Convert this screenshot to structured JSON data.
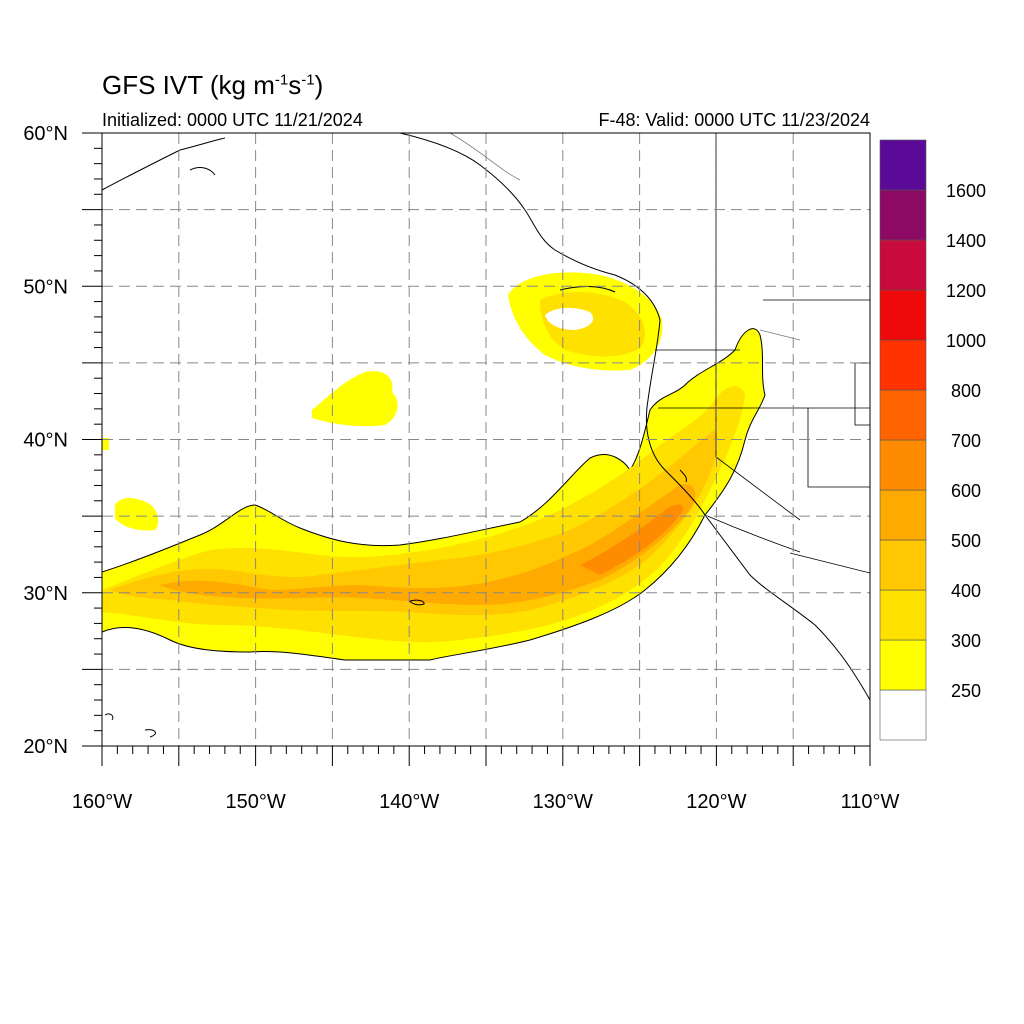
{
  "header": {
    "title_text": "GFS IVT (kg m",
    "title_exp1": "-1",
    "title_mid": "s",
    "title_exp2": "-1",
    "title_end": ")",
    "initialized": "Initialized: 0000 UTC 11/21/2024",
    "valid": "F-48: Valid: 0000 UTC 11/23/2024"
  },
  "map": {
    "lon_range": [
      -160,
      -110
    ],
    "lat_range": [
      20,
      60
    ],
    "x_ticks": [
      {
        "lon": -160,
        "label": "160°W"
      },
      {
        "lon": -150,
        "label": "150°W"
      },
      {
        "lon": -140,
        "label": "140°W"
      },
      {
        "lon": -130,
        "label": "130°W"
      },
      {
        "lon": -120,
        "label": "120°W"
      },
      {
        "lon": -110,
        "label": "110°W"
      }
    ],
    "y_ticks": [
      {
        "lat": 20,
        "label": "20°N"
      },
      {
        "lat": 30,
        "label": "30°N"
      },
      {
        "lat": 40,
        "label": "40°N"
      },
      {
        "lat": 50,
        "label": "50°N"
      },
      {
        "lat": 60,
        "label": "60°N"
      }
    ],
    "grid": "dashed every 5°"
  },
  "colorbar": {
    "levels": [
      250,
      300,
      400,
      500,
      600,
      700,
      800,
      1000,
      1200,
      1400,
      1600
    ],
    "colors": [
      "#ffffff",
      "#ffff00",
      "#ffe100",
      "#ffc800",
      "#ffaa00",
      "#ff8c00",
      "#ff6400",
      "#ff3200",
      "#ee0a0a",
      "#c80a3c",
      "#8c0a64",
      "#5a0a96"
    ]
  }
}
